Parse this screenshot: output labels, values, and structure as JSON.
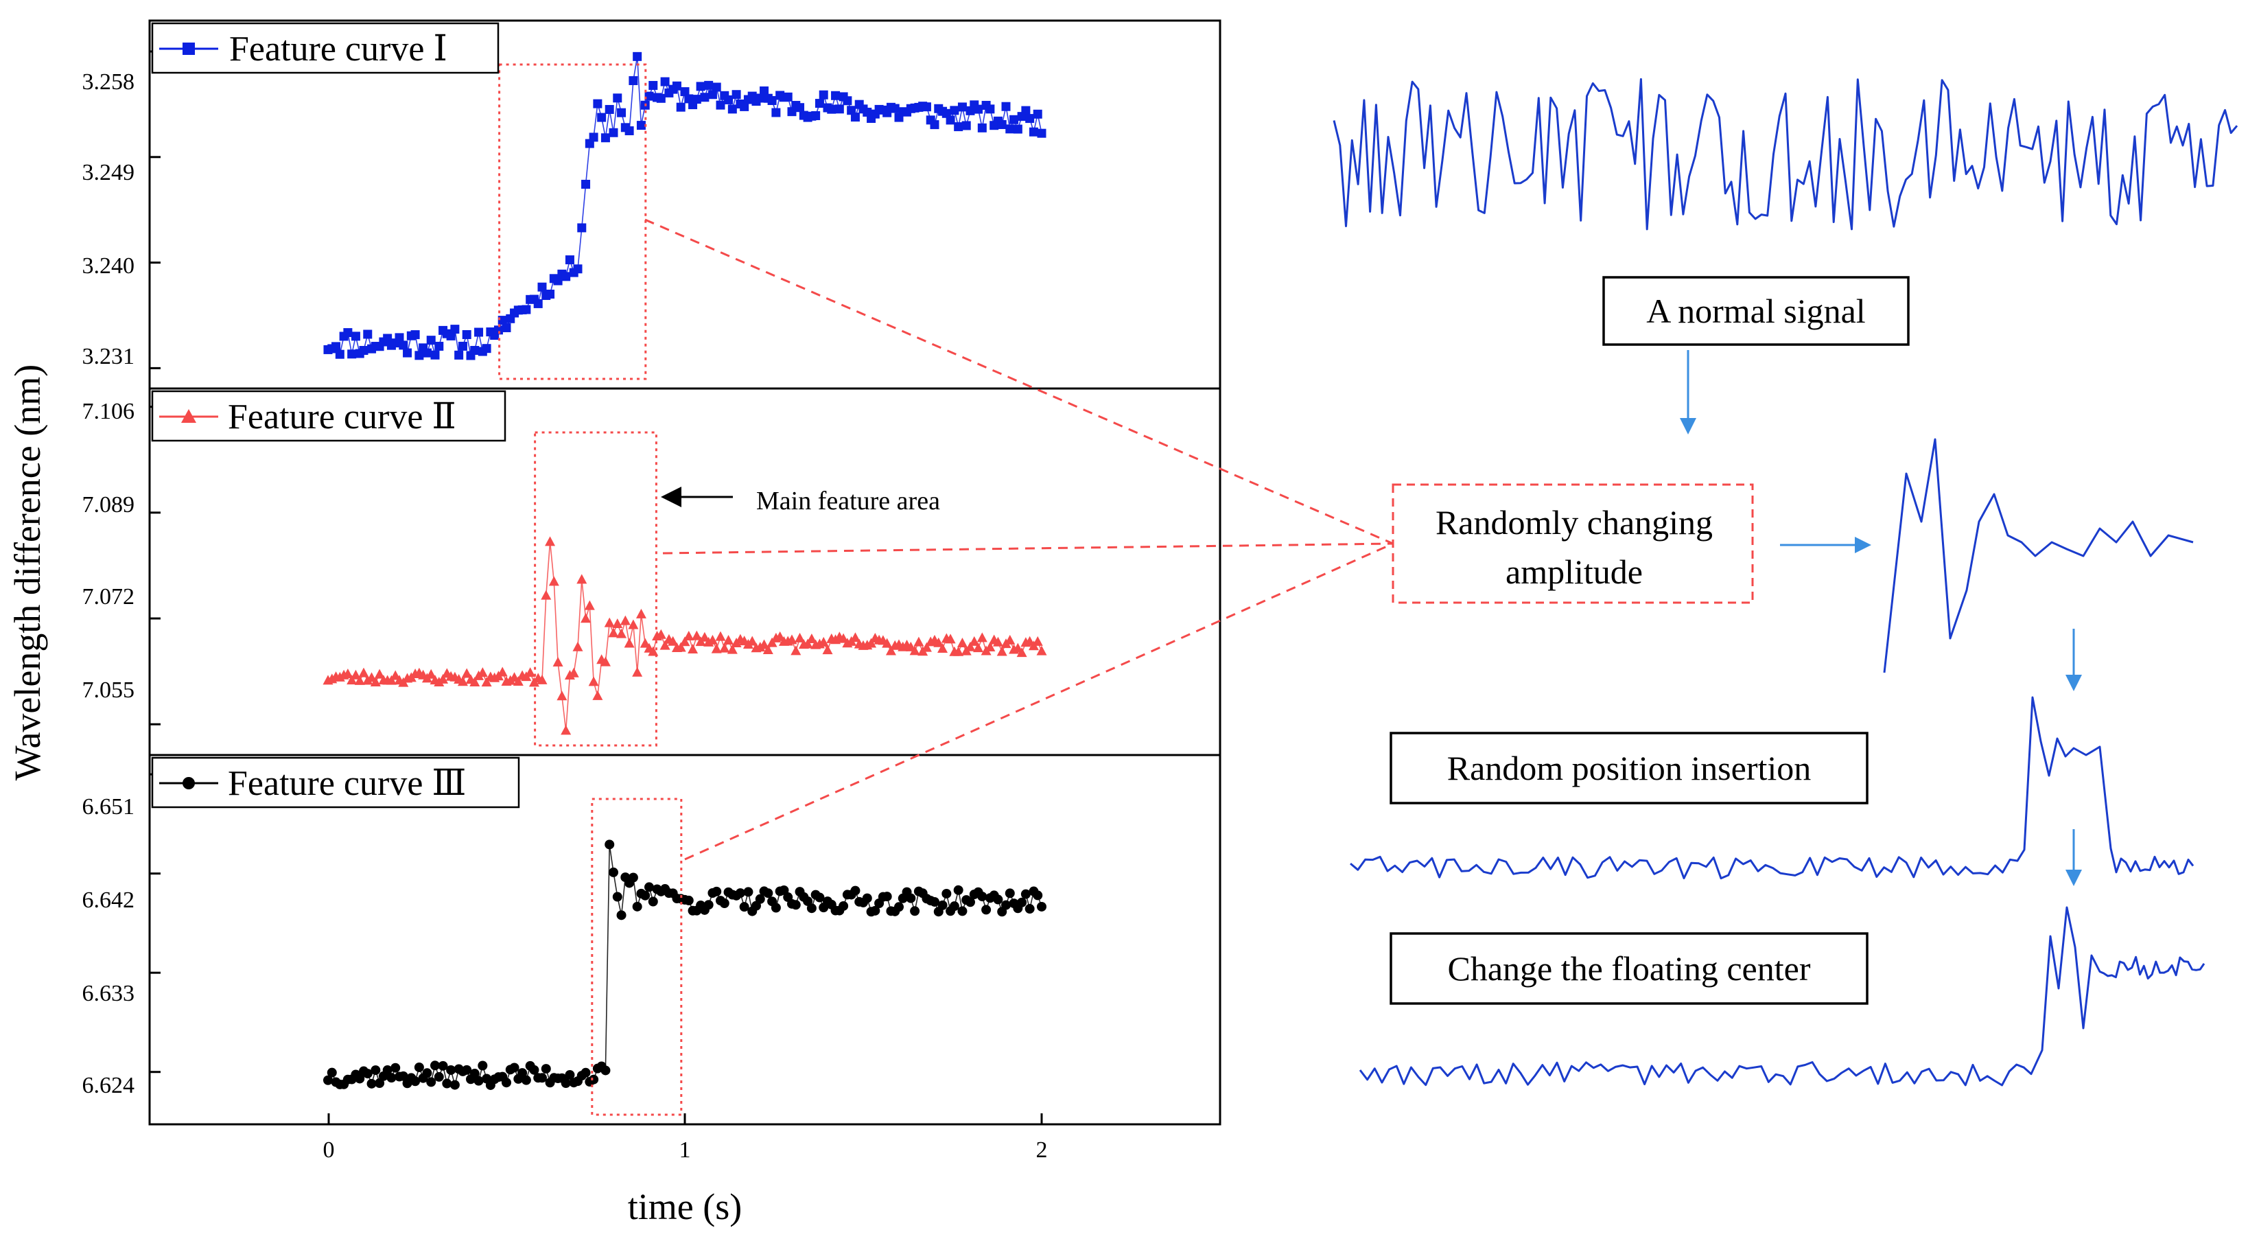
{
  "colors": {
    "series1": "#0b20e0",
    "series2": "#f44a4a",
    "series3": "#000000",
    "highlight": "#f44a4a",
    "sketch": "#1a3ccc",
    "flow_arrow": "#3b8fe0"
  },
  "chart_data": {
    "type": "line",
    "title": "",
    "xlabel": "time (s)",
    "ylabel": "Wavelength difference (nm)",
    "xlim": [
      -0.5,
      2.5
    ],
    "xticks": [
      0,
      1,
      2
    ],
    "x_tick_labels": [
      "0",
      "1",
      "2"
    ],
    "grid": false,
    "panels": [
      {
        "legend": "Feature curve  Ⅰ",
        "marker": "square",
        "color": "#0b20e0",
        "ylim": [
          3.2295,
          3.2604
        ],
        "yticks": [
          3.231,
          3.24,
          3.249,
          3.258
        ],
        "ytick_labels": [
          "3.231",
          "3.240",
          "3.249",
          "3.258"
        ],
        "feature_window": [
          0.48,
          0.89
        ],
        "segments": [
          {
            "from": 0,
            "to": 0.48,
            "base": 3.2332,
            "amp": 0.0012,
            "tilt": 0.0
          },
          {
            "from": 0.48,
            "to": 0.7,
            "base": 3.2345,
            "amp": 0.0008,
            "tilt": 0.0055
          },
          {
            "from": 0.7,
            "to": 0.73,
            "base": 3.24,
            "amp": 0.0004,
            "tilt": 0.009
          },
          {
            "from": 0.73,
            "to": 0.89,
            "base": 3.2515,
            "amp": 0.0032,
            "tilt": 0.0035
          },
          {
            "from": 0.89,
            "to": 2.0,
            "base": 3.2545,
            "amp": 0.0011,
            "tilt": -0.0025
          }
        ],
        "n_points": 180,
        "seed": 11
      },
      {
        "legend": "Feature curve  Ⅱ",
        "marker": "triangle",
        "color": "#f44a4a",
        "ylim": [
          7.0505,
          7.1085
        ],
        "yticks": [
          7.055,
          7.072,
          7.089,
          7.106
        ],
        "ytick_labels": [
          "7.055",
          "7.072",
          "7.089",
          "7.106"
        ],
        "feature_window": [
          0.58,
          0.92
        ],
        "segments": [
          {
            "from": 0,
            "to": 0.6,
            "base": 7.0625,
            "amp": 0.0009,
            "tilt": 0.0
          },
          {
            "from": 0.6,
            "to": 0.92,
            "base": 7.068,
            "amp": 0.038,
            "tilt": 0.0,
            "decay": true
          },
          {
            "from": 0.92,
            "to": 2.0,
            "base": 7.0682,
            "amp": 0.0012,
            "tilt": -0.0006
          }
        ],
        "n_points": 180,
        "seed": 23
      },
      {
        "legend": "Feature curve  Ⅲ",
        "marker": "circle",
        "color": "#000000",
        "ylim": [
          6.6195,
          6.6525
        ],
        "yticks": [
          6.624,
          6.633,
          6.642,
          6.651
        ],
        "ytick_labels": [
          "6.624",
          "6.633",
          "6.642",
          "6.651"
        ],
        "feature_window": [
          0.74,
          0.99
        ],
        "segments": [
          {
            "from": 0,
            "to": 0.78,
            "base": 6.6237,
            "amp": 0.0009,
            "tilt": 0.0
          },
          {
            "from": 0.78,
            "to": 0.96,
            "base": 6.6405,
            "amp": 0.0085,
            "tilt": 0.0,
            "decay": true
          },
          {
            "from": 0.96,
            "to": 2.0,
            "base": 6.6395,
            "amp": 0.001,
            "tilt": 0.0
          }
        ],
        "n_points": 180,
        "seed": 37
      }
    ],
    "annotations": [
      {
        "text": "Main feature area",
        "panel": 2,
        "arrow": "left"
      }
    ]
  },
  "sketches": {
    "normal_signal_label": "A normal signal",
    "random_amplitude_label_line1": "Randomly changing",
    "random_amplitude_label_line2": "amplitude",
    "random_position_label": "Random position insertion",
    "floating_center_label": "Change the floating center"
  }
}
